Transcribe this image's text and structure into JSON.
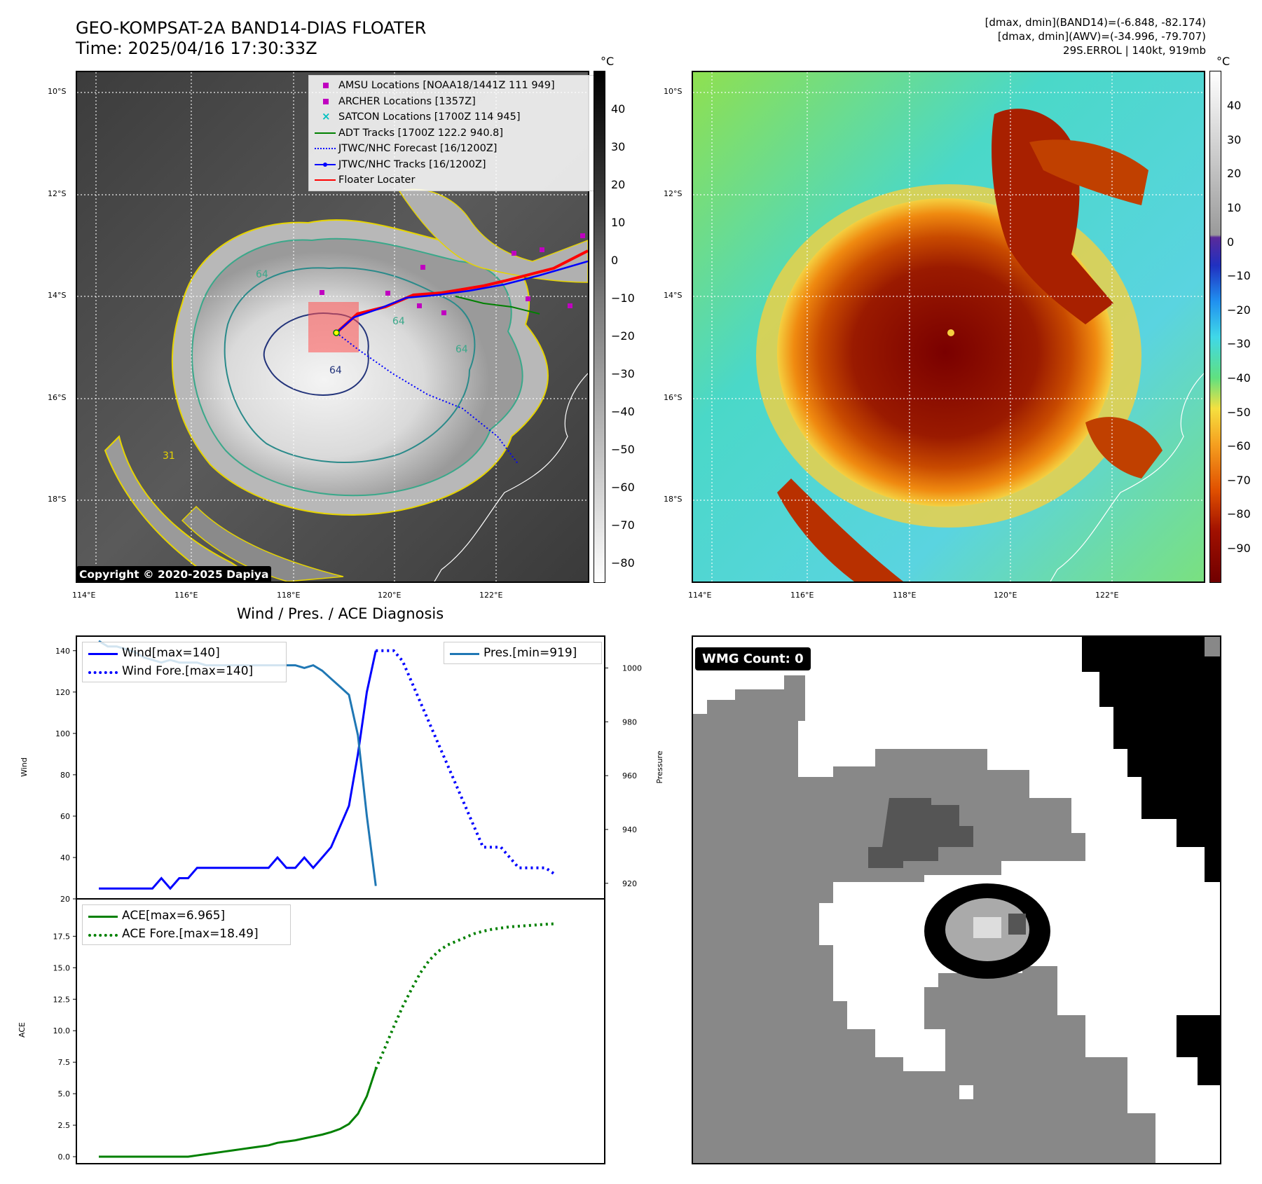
{
  "header": {
    "title_line1": "GEO-KOMPSAT-2A BAND14-DIAS FLOATER",
    "title_line2": "Time: 2025/04/16 17:30:33Z",
    "stats_line1": "[dmax, dmin](BAND14)=(-6.848, -82.174)",
    "stats_line2": "[dmax, dmin](AWV)=(-34.996, -79.707)",
    "stats_line3": "29S.ERROL | 140kt, 919mb"
  },
  "map": {
    "lat_labels": [
      "10°S",
      "12°S",
      "14°S",
      "16°S",
      "18°S"
    ],
    "lon_labels": [
      "114°E",
      "116°E",
      "118°E",
      "120°E",
      "122°E"
    ],
    "copyright": "Copyright © 2020-2025 Dapiya",
    "contour_labels": [
      "64",
      "31",
      "64",
      "64",
      "64"
    ],
    "legend": [
      {
        "label": "AMSU Locations [NOAA18/1441Z 111 949]",
        "color": "#c000c0",
        "marker": "square"
      },
      {
        "label": "ARCHER Locations [1357Z]",
        "color": "#c000c0",
        "marker": "square"
      },
      {
        "label": "SATCON Locations [1700Z 114 945]",
        "color": "#00c0c0",
        "marker": "x"
      },
      {
        "label": "ADT Tracks [1700Z 122.2 940.8]",
        "color": "#008000",
        "marker": "line"
      },
      {
        "label": "JTWC/NHC Forecast [16/1200Z]",
        "color": "#0000ff",
        "marker": "dotted"
      },
      {
        "label": "JTWC/NHC Tracks [16/1200Z]",
        "color": "#0000ff",
        "marker": "line-dot"
      },
      {
        "label": "Floater Locater",
        "color": "#ff0000",
        "marker": "line"
      }
    ],
    "colorbar_left": {
      "unit": "°C",
      "ticks": [
        "40",
        "30",
        "20",
        "10",
        "0",
        "−10",
        "−20",
        "−30",
        "−40",
        "−50",
        "−60",
        "−70",
        "−80"
      ]
    },
    "colorbar_right": {
      "unit": "°C",
      "ticks": [
        "40",
        "30",
        "20",
        "10",
        "0",
        "−10",
        "−20",
        "−30",
        "−40",
        "−50",
        "−60",
        "−70",
        "−80",
        "−90"
      ]
    }
  },
  "chart_data": [
    {
      "type": "line",
      "title": "Wind / Pres. / ACE Diagnosis",
      "ylabel": "Wind",
      "y2label": "Pressure",
      "ylim": [
        20,
        145
      ],
      "y2lim": [
        915,
        1010
      ],
      "yticks": [
        "140",
        "120",
        "100",
        "80",
        "60",
        "40",
        "20"
      ],
      "y2ticks": [
        "1000",
        "980",
        "960",
        "940",
        "920"
      ],
      "series": [
        {
          "name": "Wind[max=140]",
          "axis": "left",
          "color": "#0000ff",
          "style": "solid",
          "x": [
            0,
            1,
            2,
            3,
            4,
            5,
            6,
            7,
            8,
            9,
            10,
            11,
            12,
            13,
            14,
            15,
            16,
            17,
            18,
            19,
            20,
            21,
            22,
            23,
            24,
            25,
            26,
            27,
            28,
            29,
            30,
            31
          ],
          "values": [
            25,
            25,
            25,
            25,
            25,
            25,
            25,
            30,
            25,
            30,
            30,
            35,
            35,
            35,
            35,
            35,
            35,
            35,
            35,
            35,
            40,
            35,
            35,
            40,
            35,
            40,
            45,
            55,
            65,
            90,
            120,
            140
          ]
        },
        {
          "name": "Wind Fore.[max=140]",
          "axis": "left",
          "color": "#0000ff",
          "style": "dotted",
          "x": [
            31,
            32,
            33,
            34,
            35,
            36,
            37,
            38,
            39,
            40,
            41,
            42,
            43,
            44,
            45,
            46,
            47,
            48,
            49,
            50,
            51
          ],
          "values": [
            140,
            140,
            140,
            135,
            125,
            115,
            105,
            95,
            85,
            75,
            65,
            55,
            45,
            45,
            45,
            40,
            35,
            35,
            35,
            35,
            32
          ]
        },
        {
          "name": "Pres.[min=919]",
          "axis": "right",
          "color": "#1f77b4",
          "style": "solid",
          "x": [
            0,
            1,
            2,
            3,
            4,
            5,
            6,
            7,
            8,
            9,
            10,
            11,
            12,
            13,
            14,
            15,
            16,
            17,
            18,
            19,
            20,
            21,
            22,
            23,
            24,
            25,
            26,
            27,
            28,
            29,
            30,
            31
          ],
          "values": [
            1010,
            1008,
            1008,
            1007,
            1006,
            1004,
            1003,
            1002,
            1003,
            1002,
            1002,
            1002,
            1001,
            1001,
            1001,
            1001,
            1001,
            1001,
            1001,
            1001,
            1001,
            1001,
            1001,
            1000,
            1001,
            999,
            996,
            993,
            990,
            975,
            945,
            919
          ]
        }
      ]
    },
    {
      "type": "line",
      "ylabel": "ACE",
      "ylim": [
        -0.5,
        18.8
      ],
      "yticks": [
        "17.5",
        "15.0",
        "12.5",
        "10.0",
        "7.5",
        "5.0",
        "2.5",
        "0.0"
      ],
      "series": [
        {
          "name": "ACE[max=6.965]",
          "color": "#008000",
          "style": "solid",
          "x": [
            0,
            1,
            2,
            3,
            4,
            5,
            6,
            7,
            8,
            9,
            10,
            11,
            12,
            13,
            14,
            15,
            16,
            17,
            18,
            19,
            20,
            21,
            22,
            23,
            24,
            25,
            26,
            27,
            28,
            29,
            30,
            31
          ],
          "values": [
            0,
            0,
            0,
            0,
            0,
            0,
            0,
            0,
            0,
            0,
            0,
            0.1,
            0.2,
            0.3,
            0.4,
            0.5,
            0.6,
            0.7,
            0.8,
            0.9,
            1.1,
            1.2,
            1.3,
            1.45,
            1.6,
            1.75,
            1.95,
            2.2,
            2.6,
            3.4,
            4.8,
            6.965
          ]
        },
        {
          "name": "ACE Fore.[max=18.49]",
          "color": "#008000",
          "style": "dotted",
          "x": [
            31,
            32,
            33,
            34,
            35,
            36,
            37,
            38,
            39,
            40,
            41,
            42,
            43,
            44,
            45,
            46,
            47,
            48,
            49,
            50,
            51
          ],
          "values": [
            6.965,
            8.6,
            10.3,
            11.9,
            13.3,
            14.6,
            15.6,
            16.3,
            16.8,
            17.1,
            17.4,
            17.7,
            17.9,
            18.05,
            18.15,
            18.25,
            18.3,
            18.35,
            18.4,
            18.45,
            18.49
          ]
        }
      ]
    }
  ],
  "wmg": {
    "count_label": "WMG Count: 0"
  }
}
